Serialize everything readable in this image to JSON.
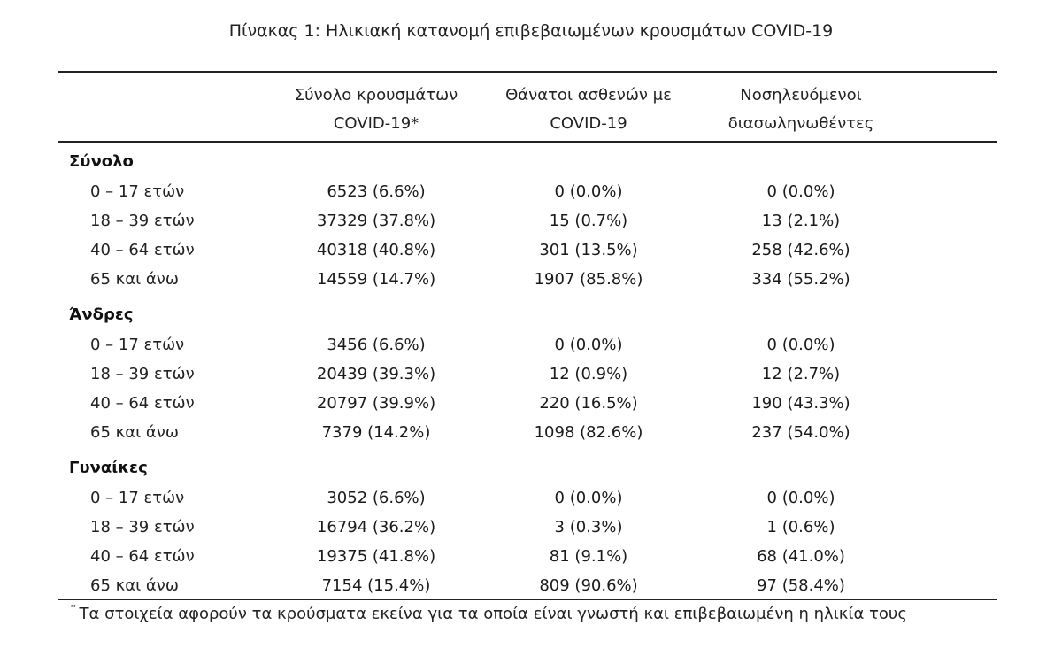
{
  "title": "Πίνακας 1: Ηλικιακή κατανομή επιβεβαιωμένων κρουσμάτων COVID-19",
  "columns": [
    {
      "line1": "Σύνολο κρουσμάτων",
      "line2": "COVID-19*"
    },
    {
      "line1": "Θάνατοι ασθενών με",
      "line2": "COVID-19"
    },
    {
      "line1": "Νοσηλευόμενοι",
      "line2": "διασωληνωθέντες"
    }
  ],
  "groups": [
    {
      "label": "Σύνολο",
      "rows": [
        {
          "age": "0 – 17 ετών",
          "cases": "6523 (6.6%)",
          "deaths": "0 (0.0%)",
          "intubated": "0 (0.0%)"
        },
        {
          "age": "18 – 39 ετών",
          "cases": "37329 (37.8%)",
          "deaths": "15 (0.7%)",
          "intubated": "13 (2.1%)"
        },
        {
          "age": "40 – 64 ετών",
          "cases": "40318 (40.8%)",
          "deaths": "301 (13.5%)",
          "intubated": "258 (42.6%)"
        },
        {
          "age": "65 και άνω",
          "cases": "14559 (14.7%)",
          "deaths": "1907 (85.8%)",
          "intubated": "334 (55.2%)"
        }
      ]
    },
    {
      "label": "Άνδρες",
      "rows": [
        {
          "age": "0 – 17 ετών",
          "cases": "3456 (6.6%)",
          "deaths": "0 (0.0%)",
          "intubated": "0 (0.0%)"
        },
        {
          "age": "18 – 39 ετών",
          "cases": "20439 (39.3%)",
          "deaths": "12 (0.9%)",
          "intubated": "12 (2.7%)"
        },
        {
          "age": "40 – 64 ετών",
          "cases": "20797 (39.9%)",
          "deaths": "220 (16.5%)",
          "intubated": "190 (43.3%)"
        },
        {
          "age": "65 και άνω",
          "cases": "7379 (14.2%)",
          "deaths": "1098 (82.6%)",
          "intubated": "237 (54.0%)"
        }
      ]
    },
    {
      "label": "Γυναίκες",
      "rows": [
        {
          "age": "0 – 17 ετών",
          "cases": "3052 (6.6%)",
          "deaths": "0 (0.0%)",
          "intubated": "0 (0.0%)"
        },
        {
          "age": "18 – 39 ετών",
          "cases": "16794 (36.2%)",
          "deaths": "3 (0.3%)",
          "intubated": "1 (0.6%)"
        },
        {
          "age": "40 – 64 ετών",
          "cases": "19375 (41.8%)",
          "deaths": "81 (9.1%)",
          "intubated": "68 (41.0%)"
        },
        {
          "age": "65 και άνω",
          "cases": "7154 (15.4%)",
          "deaths": "809 (90.6%)",
          "intubated": "97 (58.4%)"
        }
      ]
    }
  ],
  "footnote": {
    "marker": "*",
    "text": "Τα στοιχεία αφορούν τα κρούσματα εκείνα για τα οποία είναι γνωστή και επιβεβαιωμένη η ηλικία τους"
  }
}
